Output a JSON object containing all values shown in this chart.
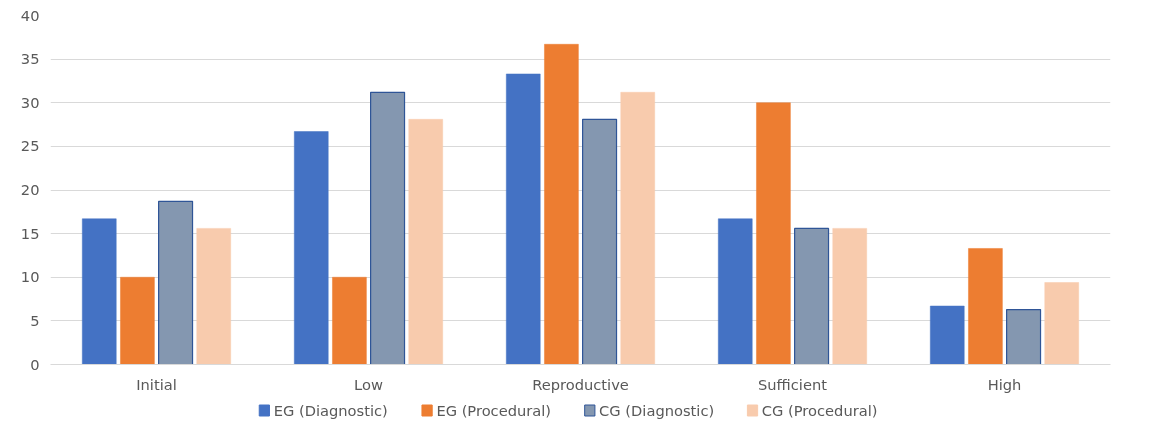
{
  "chart_data": {
    "type": "bar",
    "categories": [
      "Initial",
      "Low",
      "Reproductive",
      "Sufficient",
      "High"
    ],
    "series": [
      {
        "name": "EG (Diagnostic)",
        "color": "#4472c4",
        "values": [
          16.7,
          26.7,
          33.3,
          16.7,
          6.7
        ]
      },
      {
        "name": "EG (Procedural)",
        "color": "#ed7d31",
        "values": [
          10,
          10,
          36.7,
          30,
          13.3
        ]
      },
      {
        "name": "CG (Diagnostic)",
        "color": "#8497b0",
        "values": [
          18.7,
          31.2,
          28.1,
          15.6,
          6.3
        ]
      },
      {
        "name": "CG (Procedural)",
        "color": "#f8cbad",
        "values": [
          15.6,
          28.1,
          31.2,
          15.6,
          9.4
        ]
      }
    ],
    "ylim": [
      0,
      40
    ],
    "yticks": [
      0,
      5,
      10,
      15,
      20,
      25,
      30,
      35,
      40
    ],
    "grid": "y",
    "legend": "bottom"
  }
}
